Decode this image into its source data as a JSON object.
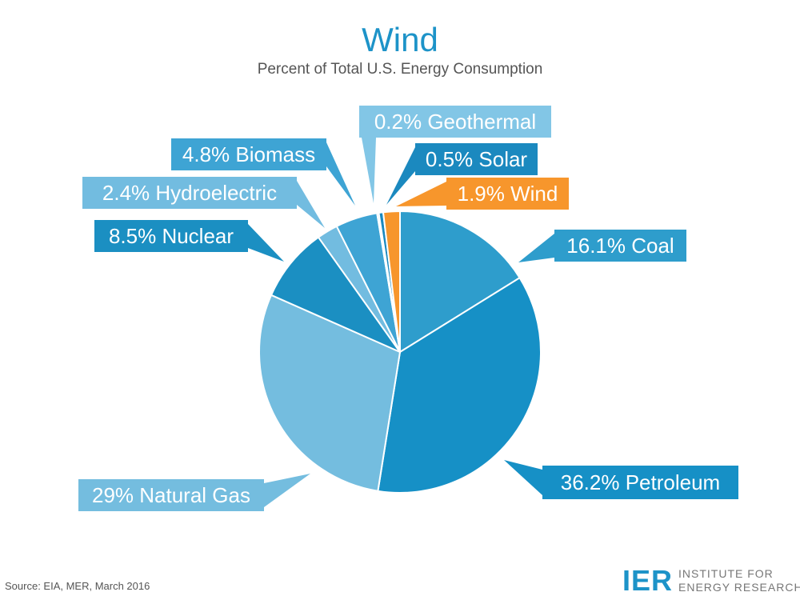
{
  "title": "Wind",
  "subtitle": "Percent of Total U.S. Energy Consumption",
  "source": "Source: EIA, MER, March 2016",
  "logo": {
    "mark": "IER",
    "line1": "INSTITUTE FOR",
    "line2": "ENERGY RESEARCH"
  },
  "colors": {
    "coal": "#2e9dcc",
    "petroleum": "#1690c6",
    "natural_gas": "#74bddf",
    "nuclear": "#1b8fc2",
    "hydroelectric": "#72bce0",
    "biomass": "#3ea4d4",
    "geothermal": "#82c6e6",
    "solar": "#1b89bf",
    "wind": "#f7962c"
  },
  "chart_data": {
    "type": "pie",
    "title": "Wind",
    "subtitle": "Percent of Total U.S. Energy Consumption",
    "start_angle_deg": 0,
    "direction": "clockwise",
    "slices": [
      {
        "key": "coal",
        "label": "16.1% Coal",
        "name": "Coal",
        "value": 16.1
      },
      {
        "key": "petroleum",
        "label": "36.2% Petroleum",
        "name": "Petroleum",
        "value": 36.2
      },
      {
        "key": "natural_gas",
        "label": "29% Natural Gas",
        "name": "Natural Gas",
        "value": 29
      },
      {
        "key": "nuclear",
        "label": "8.5% Nuclear",
        "name": "Nuclear",
        "value": 8.5
      },
      {
        "key": "hydroelectric",
        "label": "2.4% Hydroelectric",
        "name": "Hydroelectric",
        "value": 2.4
      },
      {
        "key": "biomass",
        "label": "4.8% Biomass",
        "name": "Biomass",
        "value": 4.8
      },
      {
        "key": "geothermal",
        "label": "0.2% Geothermal",
        "name": "Geothermal",
        "value": 0.2
      },
      {
        "key": "solar",
        "label": "0.5% Solar",
        "name": "Solar",
        "value": 0.5
      },
      {
        "key": "wind",
        "label": "1.9% Wind",
        "name": "Wind",
        "value": 1.9
      }
    ]
  }
}
